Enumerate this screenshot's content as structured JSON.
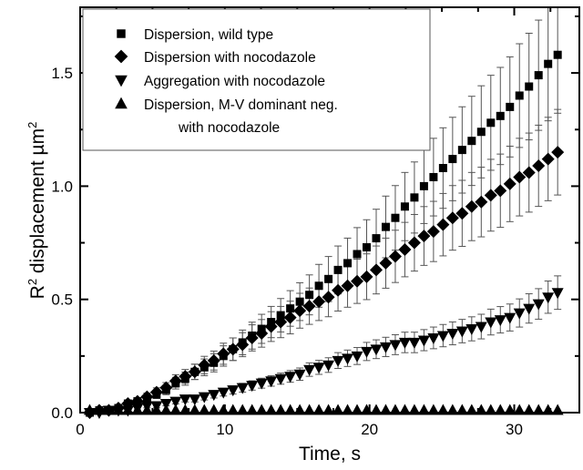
{
  "chart_data": {
    "type": "scatter",
    "xlabel": "Time, s",
    "ylabel": "R² displacement µm²",
    "ylabel_parts": {
      "r": "R",
      "sup": "2",
      "mid": " displacement µm",
      "sup2": "2"
    },
    "xlim": [
      0,
      34.5
    ],
    "ylim": [
      0,
      1.79
    ],
    "xticks": [
      0,
      10,
      20,
      30
    ],
    "xtick_labels": [
      "0",
      "10",
      "20",
      "30"
    ],
    "x_minor_step": 2.5,
    "yticks": [
      0,
      0.5,
      1.0,
      1.5
    ],
    "ytick_labels": [
      "0.0",
      "0.5",
      "1.0",
      "1.5"
    ],
    "y_minor_step": 0.25,
    "grid": false,
    "legend_position": "top-left",
    "x": [
      0.66,
      1.32,
      1.98,
      2.64,
      3.3,
      3.96,
      4.62,
      5.28,
      5.94,
      6.6,
      7.26,
      7.92,
      8.58,
      9.24,
      9.9,
      10.56,
      11.22,
      11.88,
      12.54,
      13.2,
      13.86,
      14.52,
      15.18,
      15.84,
      16.5,
      17.16,
      17.82,
      18.48,
      19.14,
      19.8,
      20.46,
      21.12,
      21.78,
      22.44,
      23.1,
      23.76,
      24.42,
      25.08,
      25.74,
      26.4,
      27.06,
      27.72,
      28.38,
      29.04,
      29.7,
      30.36,
      31.02,
      31.68,
      32.34,
      33.0
    ],
    "series": [
      {
        "name": "Dispersion, wild type",
        "marker": "square",
        "rel_error": 0.16,
        "values": [
          0.0,
          0.01,
          0.01,
          0.02,
          0.04,
          0.05,
          0.06,
          0.08,
          0.1,
          0.13,
          0.15,
          0.18,
          0.2,
          0.22,
          0.25,
          0.28,
          0.31,
          0.34,
          0.37,
          0.4,
          0.43,
          0.46,
          0.49,
          0.52,
          0.56,
          0.59,
          0.63,
          0.66,
          0.7,
          0.73,
          0.77,
          0.82,
          0.86,
          0.91,
          0.95,
          1.0,
          1.04,
          1.08,
          1.12,
          1.16,
          1.2,
          1.24,
          1.28,
          1.31,
          1.35,
          1.4,
          1.44,
          1.49,
          1.54,
          1.58
        ]
      },
      {
        "name": "Dispersion with nocodazole",
        "marker": "diamond",
        "rel_error": 0.16,
        "values": [
          0.0,
          0.01,
          0.01,
          0.02,
          0.04,
          0.05,
          0.07,
          0.09,
          0.11,
          0.14,
          0.16,
          0.18,
          0.21,
          0.23,
          0.26,
          0.28,
          0.3,
          0.33,
          0.35,
          0.38,
          0.4,
          0.42,
          0.45,
          0.47,
          0.49,
          0.51,
          0.54,
          0.56,
          0.58,
          0.6,
          0.63,
          0.66,
          0.69,
          0.72,
          0.75,
          0.78,
          0.8,
          0.83,
          0.86,
          0.88,
          0.91,
          0.93,
          0.96,
          0.98,
          1.01,
          1.04,
          1.06,
          1.09,
          1.12,
          1.15
        ]
      },
      {
        "name": "Aggregation with nocodazole",
        "marker": "triangle-down",
        "rel_error": 0.13,
        "values": [
          0.0,
          0.0,
          0.01,
          0.01,
          0.01,
          0.02,
          0.03,
          0.03,
          0.04,
          0.05,
          0.06,
          0.06,
          0.07,
          0.08,
          0.09,
          0.1,
          0.11,
          0.12,
          0.13,
          0.14,
          0.15,
          0.16,
          0.17,
          0.19,
          0.2,
          0.21,
          0.23,
          0.24,
          0.25,
          0.27,
          0.28,
          0.29,
          0.3,
          0.31,
          0.31,
          0.32,
          0.33,
          0.34,
          0.35,
          0.36,
          0.37,
          0.38,
          0.4,
          0.41,
          0.42,
          0.44,
          0.46,
          0.48,
          0.51,
          0.53
        ]
      },
      {
        "name": "Dispersion, M-V dominant neg.",
        "name_line2": "with nocodazole",
        "marker": "triangle-up",
        "rel_error": 0,
        "values": [
          0.01,
          0.01,
          0.01,
          0.01,
          0.01,
          0.01,
          0.01,
          0.01,
          0.01,
          0.01,
          0.01,
          0.01,
          0.01,
          0.01,
          0.01,
          0.01,
          0.01,
          0.01,
          0.01,
          0.01,
          0.01,
          0.01,
          0.01,
          0.01,
          0.01,
          0.01,
          0.01,
          0.01,
          0.01,
          0.01,
          0.01,
          0.01,
          0.01,
          0.01,
          0.01,
          0.01,
          0.01,
          0.01,
          0.01,
          0.01,
          0.01,
          0.01,
          0.01,
          0.01,
          0.01,
          0.01,
          0.01,
          0.01,
          0.01,
          0.01
        ]
      }
    ],
    "colors": {
      "marker": "#000000",
      "error_bar": "#555555",
      "axis": "#000000"
    }
  }
}
